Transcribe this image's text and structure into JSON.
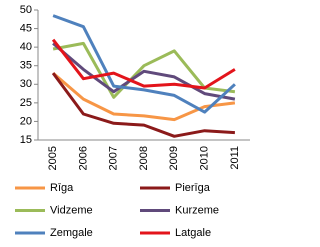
{
  "chart_data": {
    "type": "line",
    "categories": [
      "2005",
      "2006",
      "2007",
      "2008",
      "2009",
      "2010",
      "2011"
    ],
    "series": [
      {
        "name": "Rīga",
        "color": "#f79646",
        "values": [
          33,
          26,
          22,
          21.5,
          20.5,
          24,
          25
        ]
      },
      {
        "name": "Pierīga",
        "color": "#8b1a1a",
        "values": [
          33,
          22,
          19.5,
          19,
          16,
          17.5,
          17
        ]
      },
      {
        "name": "Vidzeme",
        "color": "#9bbb59",
        "values": [
          39.5,
          41,
          26.5,
          35,
          39,
          29,
          28
        ]
      },
      {
        "name": "Kurzeme",
        "color": "#604a7b",
        "values": [
          41,
          34,
          28,
          33.5,
          32,
          27.5,
          26
        ]
      },
      {
        "name": "Zemgale",
        "color": "#4f81bd",
        "values": [
          48.5,
          45.5,
          29.5,
          28.5,
          27,
          22.5,
          30
        ]
      },
      {
        "name": "Latgale",
        "color": "#e3141b",
        "values": [
          42,
          31.5,
          33,
          29.5,
          30,
          29,
          34
        ]
      }
    ],
    "ylim": [
      15,
      50
    ],
    "yticks": [
      15,
      20,
      25,
      30,
      35,
      40,
      45,
      50
    ],
    "grid": false
  }
}
